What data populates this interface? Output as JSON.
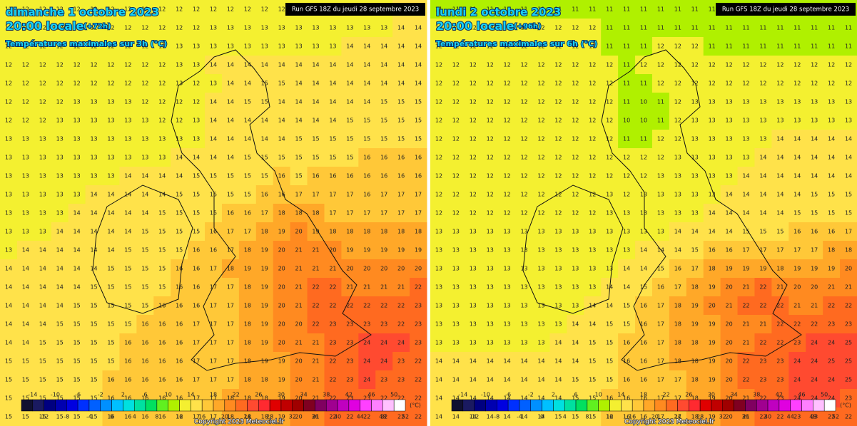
{
  "panels": [
    {
      "date": "dimanche 1 octobre 2023",
      "time": "20:00 locale",
      "lead": "(+72h)",
      "subtitle": "Températures maximales sur 3h (°C)",
      "run": "Run GFS 18Z du jeudi 28 septembre 2023",
      "copyright": "Copyright 2023 Meteociel.fr",
      "grid": [
        [
          12,
          12,
          12,
          12,
          12,
          12,
          12,
          12,
          12,
          12,
          12,
          12,
          12,
          12,
          12,
          12,
          12,
          12,
          12,
          12,
          12,
          13,
          13,
          14,
          14
        ],
        [
          12,
          12,
          12,
          12,
          12,
          12,
          12,
          12,
          12,
          12,
          12,
          12,
          13,
          13,
          13,
          13,
          13,
          13,
          13,
          13,
          13,
          13,
          13,
          14,
          14
        ],
        [
          12,
          12,
          12,
          12,
          12,
          12,
          12,
          12,
          12,
          12,
          13,
          13,
          13,
          13,
          13,
          13,
          13,
          13,
          13,
          13,
          14,
          14,
          14,
          14,
          14
        ],
        [
          12,
          12,
          12,
          12,
          12,
          12,
          12,
          12,
          12,
          12,
          13,
          13,
          14,
          14,
          14,
          14,
          14,
          14,
          14,
          14,
          14,
          14,
          14,
          14,
          14
        ],
        [
          12,
          12,
          12,
          12,
          12,
          12,
          12,
          12,
          12,
          12,
          13,
          12,
          13,
          14,
          14,
          15,
          15,
          14,
          14,
          14,
          14,
          14,
          14,
          14,
          14
        ],
        [
          12,
          12,
          12,
          12,
          13,
          13,
          13,
          13,
          12,
          12,
          12,
          12,
          14,
          14,
          15,
          15,
          14,
          14,
          14,
          14,
          14,
          14,
          15,
          15,
          15
        ],
        [
          12,
          12,
          12,
          13,
          13,
          13,
          13,
          13,
          13,
          12,
          12,
          13,
          14,
          14,
          14,
          14,
          14,
          14,
          14,
          14,
          15,
          15,
          15,
          15,
          15
        ],
        [
          13,
          13,
          13,
          13,
          13,
          13,
          13,
          13,
          13,
          13,
          13,
          13,
          14,
          14,
          14,
          14,
          14,
          15,
          15,
          15,
          15,
          15,
          15,
          15,
          15
        ],
        [
          13,
          13,
          13,
          13,
          13,
          13,
          13,
          13,
          13,
          13,
          14,
          14,
          14,
          14,
          15,
          15,
          15,
          15,
          15,
          15,
          15,
          16,
          16,
          16,
          16
        ],
        [
          13,
          13,
          13,
          13,
          13,
          13,
          13,
          14,
          14,
          14,
          14,
          15,
          15,
          15,
          15,
          15,
          16,
          15,
          16,
          16,
          16,
          16,
          16,
          16,
          16
        ],
        [
          13,
          13,
          13,
          13,
          13,
          14,
          14,
          14,
          14,
          14,
          15,
          15,
          15,
          15,
          15,
          16,
          16,
          17,
          17,
          17,
          17,
          16,
          17,
          17,
          17
        ],
        [
          13,
          13,
          13,
          13,
          14,
          14,
          14,
          14,
          14,
          15,
          15,
          15,
          15,
          16,
          16,
          17,
          18,
          18,
          18,
          17,
          17,
          17,
          17,
          17,
          17
        ],
        [
          13,
          13,
          13,
          14,
          14,
          14,
          14,
          14,
          15,
          15,
          15,
          15,
          16,
          17,
          17,
          18,
          19,
          20,
          19,
          18,
          18,
          18,
          18,
          18,
          18
        ],
        [
          13,
          14,
          14,
          14,
          14,
          14,
          14,
          15,
          15,
          15,
          15,
          16,
          16,
          17,
          18,
          19,
          20,
          21,
          21,
          20,
          19,
          19,
          19,
          19,
          19
        ],
        [
          14,
          14,
          14,
          14,
          14,
          14,
          15,
          15,
          15,
          15,
          16,
          16,
          17,
          18,
          19,
          19,
          20,
          21,
          21,
          21,
          20,
          20,
          20,
          20,
          20
        ],
        [
          14,
          14,
          14,
          14,
          14,
          15,
          15,
          15,
          15,
          15,
          16,
          16,
          17,
          17,
          18,
          19,
          20,
          21,
          22,
          22,
          21,
          21,
          21,
          21,
          22
        ],
        [
          14,
          14,
          14,
          14,
          15,
          15,
          15,
          15,
          15,
          16,
          16,
          16,
          17,
          17,
          18,
          19,
          20,
          21,
          22,
          22,
          22,
          22,
          22,
          22,
          23
        ],
        [
          14,
          14,
          14,
          15,
          15,
          15,
          15,
          15,
          16,
          16,
          16,
          17,
          17,
          17,
          18,
          19,
          20,
          20,
          22,
          23,
          23,
          23,
          23,
          22,
          23
        ],
        [
          14,
          14,
          15,
          15,
          15,
          15,
          15,
          16,
          16,
          16,
          16,
          17,
          17,
          17,
          18,
          19,
          20,
          21,
          21,
          23,
          23,
          24,
          24,
          24,
          23
        ],
        [
          15,
          15,
          15,
          15,
          15,
          15,
          15,
          16,
          16,
          16,
          16,
          17,
          17,
          17,
          18,
          19,
          19,
          20,
          21,
          22,
          23,
          24,
          24,
          23,
          22
        ],
        [
          15,
          15,
          15,
          15,
          15,
          15,
          16,
          16,
          16,
          16,
          16,
          17,
          17,
          17,
          18,
          18,
          19,
          20,
          21,
          22,
          23,
          24,
          23,
          23,
          22
        ],
        [
          15,
          15,
          15,
          15,
          15,
          15,
          16,
          16,
          16,
          16,
          16,
          17,
          17,
          18,
          18,
          18,
          19,
          20,
          21,
          22,
          23,
          23,
          22,
          22,
          22
        ],
        [
          15,
          15,
          15,
          15,
          15,
          15,
          16,
          16,
          16,
          16,
          16,
          17,
          17,
          18,
          18,
          18,
          19,
          20,
          21,
          22,
          22,
          22,
          22,
          22,
          22
        ]
      ]
    },
    {
      "date": "lundi 2 octobre 2023",
      "time": "20:00 locale",
      "lead": "(+96h)",
      "subtitle": "Températures maximales sur 6h (°C)",
      "run": "Run GFS 18Z du jeudi 28 septembre 2023",
      "copyright": "Copyright 2023 Meteociel.fr",
      "grid": [
        [
          11,
          11,
          11,
          11,
          11,
          11,
          11,
          11,
          11,
          11,
          11,
          11,
          11,
          11,
          11,
          11,
          11,
          11,
          11,
          11,
          11,
          11,
          11,
          11,
          11
        ],
        [
          12,
          12,
          12,
          12,
          12,
          12,
          12,
          12,
          12,
          12,
          11,
          11,
          11,
          11,
          11,
          11,
          11,
          11,
          11,
          11,
          11,
          11,
          11,
          11,
          11
        ],
        [
          12,
          12,
          12,
          12,
          12,
          12,
          12,
          12,
          12,
          12,
          11,
          11,
          11,
          12,
          12,
          12,
          11,
          11,
          11,
          11,
          11,
          11,
          11,
          11,
          11
        ],
        [
          12,
          12,
          12,
          12,
          12,
          12,
          12,
          12,
          12,
          12,
          12,
          11,
          12,
          12,
          12,
          12,
          12,
          12,
          12,
          12,
          12,
          12,
          12,
          12,
          12
        ],
        [
          12,
          12,
          12,
          12,
          12,
          12,
          12,
          12,
          12,
          12,
          12,
          11,
          11,
          12,
          12,
          12,
          12,
          12,
          12,
          12,
          12,
          12,
          12,
          12,
          12
        ],
        [
          12,
          12,
          12,
          12,
          12,
          12,
          12,
          12,
          12,
          12,
          12,
          11,
          10,
          11,
          12,
          13,
          13,
          13,
          13,
          13,
          13,
          13,
          13,
          13,
          13
        ],
        [
          12,
          12,
          12,
          12,
          12,
          12,
          12,
          12,
          12,
          12,
          12,
          10,
          10,
          11,
          12,
          13,
          13,
          13,
          13,
          13,
          13,
          13,
          13,
          13,
          13
        ],
        [
          12,
          12,
          12,
          12,
          12,
          12,
          12,
          12,
          12,
          12,
          12,
          11,
          11,
          12,
          12,
          13,
          13,
          13,
          13,
          13,
          14,
          14,
          14,
          14,
          14
        ],
        [
          12,
          12,
          12,
          12,
          12,
          12,
          12,
          12,
          12,
          12,
          12,
          12,
          12,
          12,
          13,
          13,
          13,
          13,
          13,
          14,
          14,
          14,
          14,
          14,
          14
        ],
        [
          12,
          12,
          12,
          12,
          12,
          12,
          12,
          12,
          12,
          12,
          12,
          12,
          12,
          13,
          13,
          13,
          13,
          13,
          14,
          14,
          14,
          14,
          14,
          14,
          14
        ],
        [
          12,
          12,
          12,
          12,
          12,
          12,
          12,
          12,
          12,
          12,
          13,
          12,
          13,
          13,
          13,
          13,
          13,
          14,
          14,
          14,
          14,
          14,
          15,
          15,
          15
        ],
        [
          12,
          12,
          12,
          12,
          12,
          12,
          12,
          12,
          12,
          12,
          13,
          13,
          13,
          13,
          13,
          13,
          14,
          14,
          14,
          14,
          14,
          15,
          15,
          15,
          15
        ],
        [
          13,
          13,
          13,
          13,
          13,
          13,
          13,
          13,
          13,
          13,
          13,
          13,
          13,
          13,
          14,
          14,
          14,
          14,
          15,
          15,
          15,
          16,
          16,
          16,
          17
        ],
        [
          13,
          13,
          13,
          13,
          13,
          13,
          13,
          13,
          13,
          13,
          13,
          13,
          14,
          14,
          14,
          15,
          16,
          16,
          17,
          17,
          17,
          17,
          17,
          18,
          18
        ],
        [
          13,
          13,
          13,
          13,
          13,
          13,
          13,
          13,
          13,
          13,
          13,
          14,
          14,
          15,
          16,
          17,
          18,
          19,
          19,
          19,
          18,
          19,
          19,
          19,
          20
        ],
        [
          13,
          13,
          13,
          13,
          13,
          13,
          13,
          13,
          13,
          13,
          14,
          14,
          15,
          16,
          17,
          18,
          19,
          20,
          21,
          22,
          21,
          20,
          20,
          21,
          21
        ],
        [
          13,
          13,
          13,
          13,
          13,
          13,
          13,
          13,
          13,
          14,
          14,
          15,
          16,
          17,
          18,
          19,
          20,
          21,
          22,
          22,
          22,
          21,
          21,
          22,
          22
        ],
        [
          13,
          13,
          13,
          13,
          13,
          13,
          13,
          13,
          14,
          14,
          15,
          15,
          16,
          17,
          18,
          19,
          19,
          20,
          21,
          21,
          22,
          22,
          22,
          23,
          23
        ],
        [
          13,
          13,
          13,
          13,
          13,
          13,
          13,
          14,
          14,
          15,
          15,
          16,
          16,
          17,
          18,
          18,
          19,
          20,
          21,
          22,
          22,
          23,
          24,
          24,
          25
        ],
        [
          14,
          14,
          14,
          14,
          14,
          14,
          14,
          14,
          14,
          15,
          15,
          16,
          16,
          17,
          18,
          18,
          19,
          20,
          22,
          23,
          23,
          24,
          24,
          25,
          25
        ],
        [
          14,
          14,
          14,
          14,
          14,
          14,
          14,
          14,
          15,
          15,
          15,
          16,
          16,
          17,
          17,
          18,
          19,
          20,
          22,
          23,
          23,
          24,
          24,
          24,
          25
        ],
        [
          14,
          14,
          14,
          14,
          14,
          14,
          14,
          14,
          15,
          15,
          16,
          16,
          16,
          17,
          17,
          18,
          19,
          20,
          21,
          22,
          23,
          24,
          24,
          24,
          23
        ],
        [
          14,
          14,
          14,
          14,
          14,
          14,
          14,
          15,
          15,
          15,
          16,
          16,
          16,
          17,
          17,
          18,
          19,
          20,
          21,
          22,
          22,
          23,
          23,
          22,
          22
        ]
      ]
    }
  ],
  "colorbar": {
    "ticks_top": [
      -14,
      -10,
      -6,
      -2,
      2,
      6,
      10,
      14,
      18,
      22,
      26,
      30,
      34,
      38,
      42,
      46,
      50
    ],
    "ticks_bottom": [
      -12,
      -8,
      -4,
      0,
      4,
      8,
      12,
      16,
      20,
      24,
      28,
      32,
      36,
      40,
      44,
      48,
      52
    ],
    "unit": "(°C)",
    "colors": [
      "#101030",
      "#1a1a60",
      "#000080",
      "#0000b0",
      "#0000e0",
      "#0030ff",
      "#0060ff",
      "#0090ff",
      "#00c0ff",
      "#00e0e0",
      "#00e0a0",
      "#00e060",
      "#60f020",
      "#b0f000",
      "#f4f030",
      "#ffe24a",
      "#ffc838",
      "#ffa828",
      "#ff8a20",
      "#ff6a20",
      "#ff4a30",
      "#ff2a30",
      "#e00000",
      "#c00000",
      "#a00000",
      "#800020",
      "#800060",
      "#a00090",
      "#c000c0",
      "#e000e0",
      "#ff40ff",
      "#ff80ff",
      "#ffc0ff",
      "#ffffff"
    ]
  }
}
